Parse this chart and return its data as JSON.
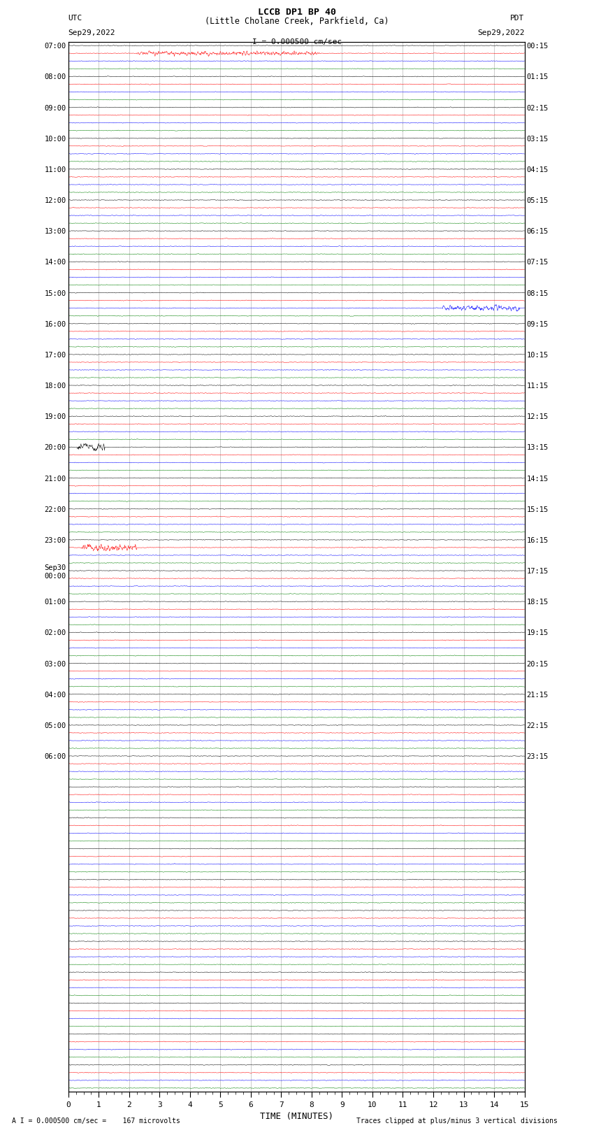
{
  "title_line1": "LCCB DP1 BP 40",
  "title_line2": "(Little Cholane Creek, Parkfield, Ca)",
  "scale_text": "I = 0.000500 cm/sec",
  "footer_left": "A I = 0.000500 cm/sec =    167 microvolts",
  "footer_right": "Traces clipped at plus/minus 3 vertical divisions",
  "xlabel": "TIME (MINUTES)",
  "left_label": "UTC",
  "left_date": "Sep29,2022",
  "right_label": "PDT",
  "right_date": "Sep29,2022",
  "trace_colors": [
    "black",
    "red",
    "blue",
    "green"
  ],
  "noise_amplitude": 0.03,
  "background_color": "white",
  "fig_width": 8.5,
  "fig_height": 16.13,
  "n_groups": 34,
  "samples_per_row": 1800,
  "left_time_labels": [
    "07:00",
    "08:00",
    "09:00",
    "10:00",
    "11:00",
    "12:00",
    "13:00",
    "14:00",
    "15:00",
    "16:00",
    "17:00",
    "18:00",
    "19:00",
    "20:00",
    "21:00",
    "22:00",
    "23:00",
    "Sep30\n00:00",
    "01:00",
    "02:00",
    "03:00",
    "04:00",
    "05:00",
    "06:00",
    "",
    "",
    "",
    "",
    "",
    "",
    "",
    "",
    "",
    "",
    "",
    "",
    "",
    "",
    "",
    "",
    "",
    "",
    "",
    "",
    "",
    "",
    "",
    "",
    "",
    "",
    "",
    "",
    "",
    "",
    "",
    "",
    "",
    "",
    "",
    "",
    "",
    "",
    "",
    "",
    "",
    "",
    "",
    "",
    "",
    "",
    "",
    "",
    "",
    "",
    "",
    "",
    "",
    "",
    "",
    "",
    "",
    "",
    "",
    "",
    "",
    "",
    "",
    "",
    "",
    "",
    "",
    ""
  ],
  "right_time_labels": [
    "00:15",
    "01:15",
    "02:15",
    "03:15",
    "04:15",
    "05:15",
    "06:15",
    "07:15",
    "08:15",
    "09:15",
    "10:15",
    "11:15",
    "12:15",
    "13:15",
    "14:15",
    "15:15",
    "16:15",
    "17:15",
    "18:15",
    "19:15",
    "20:15",
    "21:15",
    "22:15",
    "23:15",
    "",
    "",
    "",
    "",
    "",
    "",
    "",
    "",
    "",
    "",
    "",
    "",
    "",
    "",
    "",
    "",
    "",
    "",
    "",
    "",
    "",
    "",
    "",
    "",
    "",
    "",
    "",
    "",
    "",
    "",
    "",
    "",
    "",
    "",
    "",
    "",
    "",
    "",
    "",
    "",
    "",
    "",
    "",
    "",
    "",
    "",
    "",
    "",
    "",
    "",
    "",
    "",
    "",
    "",
    "",
    "",
    "",
    "",
    "",
    "",
    "",
    "",
    "",
    "",
    "",
    "",
    "",
    ""
  ]
}
